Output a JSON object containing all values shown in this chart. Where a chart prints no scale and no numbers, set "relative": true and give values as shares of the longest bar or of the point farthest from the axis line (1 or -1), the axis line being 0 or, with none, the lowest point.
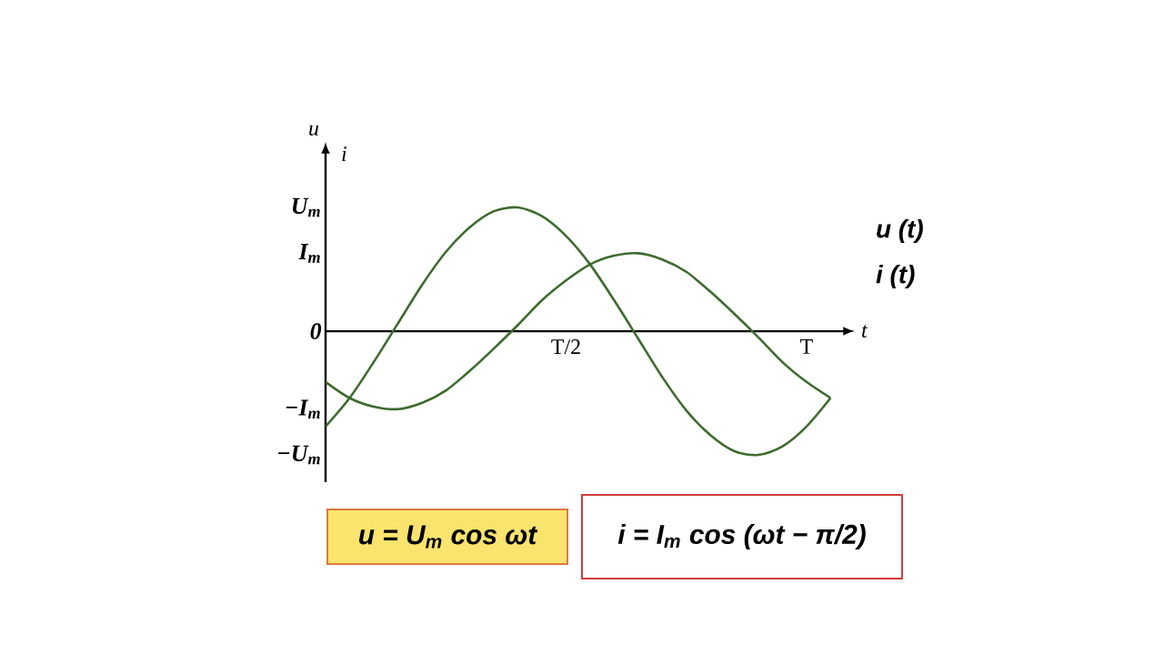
{
  "chart_data": {
    "type": "line",
    "relative": true,
    "xlabel": "t",
    "ylabel": "u",
    "annotations": [
      "i",
      "u = U$_{m}$ cos ωt",
      "i = I$_{m}$ cos (ωt − π/2)",
      "T/2",
      "T",
      "U$_{m}$",
      "I$_{m}$",
      "0",
      "−I$_{m}$",
      "−U$_{m}$"
    ],
    "categories": [
      null,
      null,
      null,
      null,
      null,
      null,
      null,
      null,
      null,
      null,
      null,
      null,
      null,
      null,
      null,
      null,
      null,
      null,
      null,
      null,
      null,
      null
    ],
    "series": [
      {
        "name": "u (t)",
        "color": "#3d6b2e",
        "values": [
          -0.77,
          -0.54,
          -0.25,
          0.06,
          0.37,
          0.64,
          0.84,
          0.97,
          1.0,
          0.93,
          0.77,
          0.54,
          0.25,
          -0.06,
          -0.37,
          -0.64,
          -0.84,
          -0.97,
          -1.0,
          -0.93,
          -0.77,
          -0.54
        ]
      },
      {
        "name": "i (t)",
        "color": "#3d6b2e",
        "values": [
          -0.41,
          -0.54,
          -0.61,
          -0.63,
          -0.58,
          -0.48,
          -0.32,
          -0.14,
          0.05,
          0.25,
          0.41,
          0.54,
          0.61,
          0.63,
          0.58,
          0.48,
          0.32,
          0.14,
          -0.05,
          -0.25,
          -0.41,
          -0.54
        ]
      }
    ],
    "legend": "right"
  }
}
